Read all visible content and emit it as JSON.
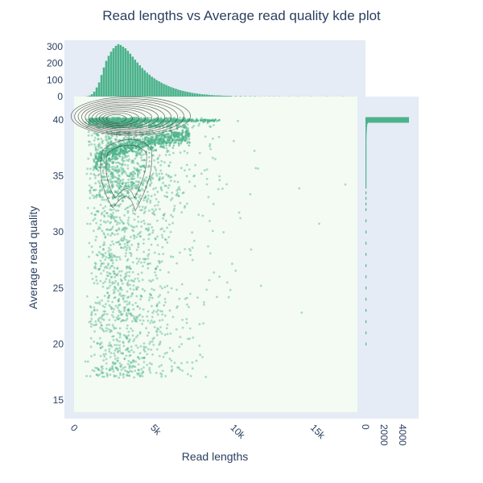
{
  "chart_data": {
    "type": "scatter",
    "title": "Read lengths vs Average read quality kde plot",
    "xlabel": "Read lengths",
    "ylabel": "Average read quality",
    "xlim": [
      -500,
      18000
    ],
    "ylim": [
      14,
      42
    ],
    "x_ticks": [
      {
        "value": 0,
        "label": "0"
      },
      {
        "value": 5000,
        "label": "5k"
      },
      {
        "value": 10000,
        "label": "10k"
      },
      {
        "value": 15000,
        "label": "15k"
      }
    ],
    "y_ticks": [
      {
        "value": 15,
        "label": "15"
      },
      {
        "value": 20,
        "label": "20"
      },
      {
        "value": 25,
        "label": "25"
      },
      {
        "value": 30,
        "label": "30"
      },
      {
        "value": 35,
        "label": "35"
      },
      {
        "value": 40,
        "label": "40"
      }
    ],
    "top_hist": {
      "ylim": [
        0,
        330
      ],
      "ticks": [
        {
          "value": 0,
          "label": "0"
        },
        {
          "value": 100,
          "label": "100"
        },
        {
          "value": 200,
          "label": "200"
        },
        {
          "value": 300,
          "label": "300"
        }
      ],
      "bins": [
        [
          1000,
          2
        ],
        [
          1150,
          6
        ],
        [
          1300,
          14
        ],
        [
          1450,
          30
        ],
        [
          1600,
          55
        ],
        [
          1750,
          85
        ],
        [
          1900,
          130
        ],
        [
          2050,
          175
        ],
        [
          2200,
          215
        ],
        [
          2350,
          245
        ],
        [
          2500,
          270
        ],
        [
          2650,
          290
        ],
        [
          2800,
          305
        ],
        [
          2950,
          315
        ],
        [
          3100,
          310
        ],
        [
          3250,
          300
        ],
        [
          3400,
          290
        ],
        [
          3550,
          275
        ],
        [
          3700,
          258
        ],
        [
          3850,
          240
        ],
        [
          4000,
          222
        ],
        [
          4150,
          205
        ],
        [
          4300,
          188
        ],
        [
          4450,
          172
        ],
        [
          4600,
          158
        ],
        [
          4750,
          144
        ],
        [
          4900,
          132
        ],
        [
          5050,
          120
        ],
        [
          5200,
          110
        ],
        [
          5350,
          100
        ],
        [
          5500,
          92
        ],
        [
          5650,
          84
        ],
        [
          5800,
          76
        ],
        [
          5950,
          70
        ],
        [
          6100,
          63
        ],
        [
          6250,
          57
        ],
        [
          6400,
          52
        ],
        [
          6550,
          47
        ],
        [
          6700,
          42
        ],
        [
          6850,
          38
        ],
        [
          7000,
          34
        ],
        [
          7150,
          31
        ],
        [
          7300,
          28
        ],
        [
          7450,
          25
        ],
        [
          7600,
          22
        ],
        [
          7750,
          20
        ],
        [
          7900,
          18
        ],
        [
          8050,
          16
        ],
        [
          8200,
          14
        ],
        [
          8350,
          13
        ],
        [
          8500,
          12
        ],
        [
          8650,
          10
        ],
        [
          8800,
          9
        ],
        [
          8950,
          8
        ],
        [
          9100,
          7
        ],
        [
          9250,
          7
        ],
        [
          9400,
          6
        ],
        [
          9550,
          5
        ],
        [
          9700,
          5
        ],
        [
          9850,
          4
        ],
        [
          10000,
          4
        ],
        [
          10300,
          3
        ],
        [
          10600,
          3
        ],
        [
          10900,
          2
        ],
        [
          11200,
          2
        ],
        [
          11500,
          2
        ],
        [
          11800,
          1
        ],
        [
          12100,
          1
        ],
        [
          12400,
          1
        ],
        [
          12700,
          1
        ],
        [
          13000,
          1
        ],
        [
          13600,
          1
        ],
        [
          14200,
          1
        ],
        [
          15000,
          1
        ],
        [
          16000,
          1
        ],
        [
          17000,
          1
        ]
      ]
    },
    "right_hist": {
      "xlim": [
        0,
        4800
      ],
      "ticks": [
        {
          "value": 0,
          "label": "0"
        },
        {
          "value": 2000,
          "label": "2000"
        },
        {
          "value": 4000,
          "label": "4000"
        }
      ],
      "bins": [
        [
          40.0,
          4700
        ],
        [
          39.75,
          250
        ],
        [
          39.5,
          180
        ],
        [
          39.25,
          150
        ],
        [
          39.0,
          140
        ],
        [
          38.75,
          120
        ],
        [
          38.5,
          110
        ],
        [
          38.25,
          95
        ],
        [
          38.0,
          85
        ],
        [
          37.75,
          75
        ],
        [
          37.5,
          65
        ],
        [
          37.25,
          55
        ],
        [
          37.0,
          48
        ],
        [
          36.75,
          40
        ],
        [
          36.5,
          35
        ],
        [
          36.25,
          30
        ],
        [
          36.0,
          28
        ],
        [
          35.75,
          25
        ],
        [
          35.5,
          22
        ],
        [
          35.25,
          20
        ],
        [
          35.0,
          18
        ],
        [
          34.75,
          16
        ],
        [
          34.5,
          15
        ],
        [
          34.25,
          14
        ],
        [
          34.0,
          13
        ],
        [
          33.5,
          12
        ],
        [
          33.0,
          11
        ],
        [
          32.5,
          10
        ],
        [
          32.0,
          10
        ],
        [
          31.0,
          9
        ],
        [
          30.0,
          9
        ],
        [
          29.0,
          8
        ],
        [
          28.0,
          8
        ],
        [
          27.0,
          7
        ],
        [
          26.0,
          7
        ],
        [
          25.0,
          6
        ],
        [
          24.0,
          6
        ],
        [
          23.0,
          5
        ],
        [
          22.0,
          5
        ],
        [
          21.0,
          4
        ],
        [
          20.0,
          4
        ]
      ]
    },
    "colors": {
      "marker": "#4bb38a",
      "plot_bg": "#f4fbf2",
      "marginal_bg": "#e5ecf6",
      "contour": "#3a3a3a",
      "text": "#2a3f5f"
    }
  }
}
